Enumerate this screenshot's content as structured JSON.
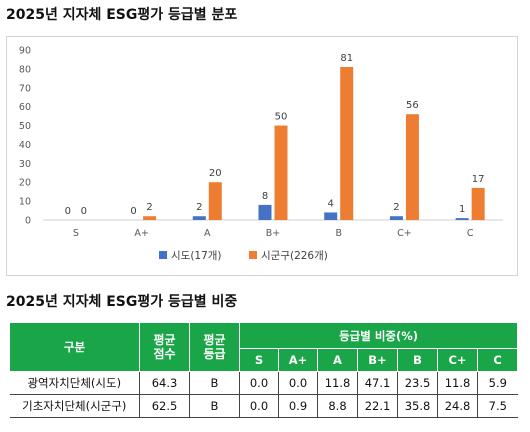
{
  "section1_title": "2025년 지자체 ESG평가 등급별 분포",
  "section2_title": "2025년 지자체 ESG평가 등급별 비중",
  "chart_data": {
    "type": "bar",
    "categories": [
      "S",
      "A+",
      "A",
      "B+",
      "B",
      "C+",
      "C"
    ],
    "series": [
      {
        "name": "시도(17개)",
        "color": "#4472c4",
        "values": [
          0,
          0,
          2,
          8,
          4,
          2,
          1
        ]
      },
      {
        "name": "시군구(226개)",
        "color": "#ed7d31",
        "values": [
          0,
          2,
          20,
          50,
          81,
          56,
          17
        ]
      }
    ],
    "ylim": [
      0,
      90
    ],
    "yticks": [
      0,
      10,
      20,
      30,
      40,
      50,
      60,
      70,
      80,
      90
    ],
    "grid": false,
    "legend_position": "bottom"
  },
  "table": {
    "col_group": "구분",
    "col_avg_score": [
      "평균",
      "점수"
    ],
    "col_avg_grade": [
      "평균",
      "등급"
    ],
    "col_ratio": "등급별 비중(%)",
    "grades": [
      "S",
      "A+",
      "A",
      "B+",
      "B",
      "C+",
      "C"
    ],
    "rows": [
      {
        "name": "광역자치단체(시도)",
        "score": "64.3",
        "grade": "B",
        "ratios": [
          "0.0",
          "0.0",
          "11.8",
          "47.1",
          "23.5",
          "11.8",
          "5.9"
        ]
      },
      {
        "name": "기초자치단체(시군구)",
        "score": "62.5",
        "grade": "B",
        "ratios": [
          "0.0",
          "0.9",
          "8.8",
          "22.1",
          "35.8",
          "24.8",
          "7.5"
        ]
      }
    ]
  }
}
